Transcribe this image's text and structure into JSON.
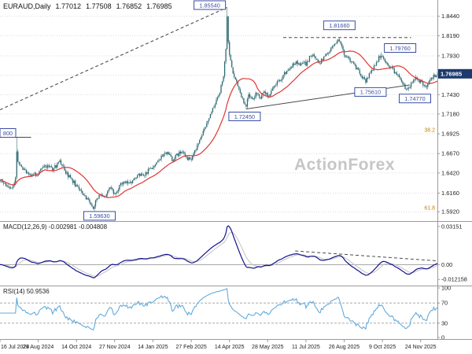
{
  "watermark": "ActionForex",
  "header": {
    "symbol": "EURAUD,Daily",
    "open": "1.77012",
    "high": "1.77508",
    "low": "1.76852",
    "close": "1.76985"
  },
  "panels": {
    "macd": {
      "title": "MACD(12,26,9) -0.002981 -0.004808"
    },
    "rsi": {
      "title": "RSI(14) 50.9536"
    }
  },
  "colors": {
    "candle": "#2f6a72",
    "ma": "#e23434",
    "macd": "#12128e",
    "macd_signal": "#c2c2c2",
    "rsi": "#64aadb",
    "trendline": "#4a4a4a",
    "grid": "#dcdcdc",
    "axis_text": "#1c1c1c",
    "label_border": "#3b4ea5",
    "label_text": "#3b4ea5",
    "current_bg": "#1d3a6d",
    "current_text": "#ffffff",
    "fib": "#b8860b",
    "separator": "#9a9a9a",
    "watermark": "#c6c6c6"
  },
  "chart_data": [
    {
      "type": "candlestick",
      "name": "EURAUD Daily price",
      "days_total": 367,
      "ylim": [
        1.58,
        1.865
      ],
      "y_ticks": [
        {
          "v": 1.844,
          "t": "1.8440"
        },
        {
          "v": 1.819,
          "t": "1.8190"
        },
        {
          "v": 1.793,
          "t": "1.7930"
        },
        {
          "v": 1.768,
          "t": "1.7680"
        },
        {
          "v": 1.743,
          "t": "1.7430"
        },
        {
          "v": 1.718,
          "t": "1.7180"
        },
        {
          "v": 1.6925,
          "t": "1.6925"
        },
        {
          "v": 1.667,
          "t": "1.6670"
        },
        {
          "v": 1.642,
          "t": "1.6420"
        },
        {
          "v": 1.616,
          "t": "1.6160"
        },
        {
          "v": 1.592,
          "t": "1.5920"
        }
      ],
      "fib_levels": [
        {
          "v": 1.6925,
          "t": "38.2"
        },
        {
          "v": 1.592,
          "t": "61.8"
        }
      ],
      "current_price": {
        "v": 1.76985,
        "t": "1.76985"
      },
      "ma_period": 25,
      "close_waypoints": [
        [
          0,
          1.633
        ],
        [
          6,
          1.626
        ],
        [
          10,
          1.621
        ],
        [
          13,
          1.634
        ],
        [
          14,
          1.671
        ],
        [
          15,
          1.654
        ],
        [
          18,
          1.648
        ],
        [
          22,
          1.642
        ],
        [
          26,
          1.639
        ],
        [
          32,
          1.641
        ],
        [
          38,
          1.652
        ],
        [
          44,
          1.646
        ],
        [
          50,
          1.656
        ],
        [
          56,
          1.64
        ],
        [
          60,
          1.6335
        ],
        [
          64,
          1.625
        ],
        [
          68,
          1.618
        ],
        [
          72,
          1.61
        ],
        [
          75,
          1.603
        ],
        [
          78,
          1.5975
        ],
        [
          81,
          1.608
        ],
        [
          84,
          1.617
        ],
        [
          88,
          1.612
        ],
        [
          92,
          1.622
        ],
        [
          96,
          1.6155
        ],
        [
          100,
          1.625
        ],
        [
          104,
          1.631
        ],
        [
          108,
          1.6265
        ],
        [
          112,
          1.6335
        ],
        [
          116,
          1.6415
        ],
        [
          120,
          1.637
        ],
        [
          124,
          1.6445
        ],
        [
          128,
          1.6495
        ],
        [
          132,
          1.658
        ],
        [
          136,
          1.6635
        ],
        [
          140,
          1.668
        ],
        [
          144,
          1.659
        ],
        [
          148,
          1.6655
        ],
        [
          152,
          1.669
        ],
        [
          156,
          1.6615
        ],
        [
          160,
          1.66
        ],
        [
          164,
          1.673
        ],
        [
          168,
          1.686
        ],
        [
          172,
          1.703
        ],
        [
          176,
          1.718
        ],
        [
          180,
          1.731
        ],
        [
          184,
          1.7445
        ],
        [
          187,
          1.768
        ],
        [
          189,
          1.801
        ],
        [
          190,
          1.843
        ],
        [
          191,
          1.808
        ],
        [
          193,
          1.786
        ],
        [
          196,
          1.766
        ],
        [
          200,
          1.749
        ],
        [
          203,
          1.737
        ],
        [
          206,
          1.729
        ],
        [
          208,
          1.7445
        ],
        [
          211,
          1.7375
        ],
        [
          214,
          1.7435
        ],
        [
          218,
          1.7375
        ],
        [
          221,
          1.7455
        ],
        [
          224,
          1.741
        ],
        [
          228,
          1.7495
        ],
        [
          232,
          1.7575
        ],
        [
          236,
          1.7655
        ],
        [
          240,
          1.7735
        ],
        [
          244,
          1.7795
        ],
        [
          248,
          1.7855
        ],
        [
          251,
          1.779
        ],
        [
          254,
          1.7845
        ],
        [
          256,
          1.782
        ],
        [
          259,
          1.7905
        ],
        [
          262,
          1.7935
        ],
        [
          265,
          1.7875
        ],
        [
          268,
          1.7845
        ],
        [
          271,
          1.791
        ],
        [
          274,
          1.7965
        ],
        [
          277,
          1.8025
        ],
        [
          280,
          1.8065
        ],
        [
          283,
          1.8115
        ],
        [
          285,
          1.8075
        ],
        [
          288,
          1.7965
        ],
        [
          291,
          1.7895
        ],
        [
          294,
          1.7865
        ],
        [
          297,
          1.7805
        ],
        [
          300,
          1.773
        ],
        [
          303,
          1.7655
        ],
        [
          306,
          1.7595
        ],
        [
          309,
          1.7685
        ],
        [
          312,
          1.7755
        ],
        [
          315,
          1.7855
        ],
        [
          318,
          1.7925
        ],
        [
          319,
          1.7935
        ],
        [
          321,
          1.789
        ],
        [
          324,
          1.7835
        ],
        [
          327,
          1.7795
        ],
        [
          330,
          1.7725
        ],
        [
          333,
          1.7675
        ],
        [
          336,
          1.7595
        ],
        [
          339,
          1.7525
        ],
        [
          342,
          1.7505
        ],
        [
          345,
          1.7585
        ],
        [
          348,
          1.7665
        ],
        [
          352,
          1.759
        ],
        [
          355,
          1.7525
        ],
        [
          358,
          1.7565
        ],
        [
          361,
          1.7635
        ],
        [
          364,
          1.768
        ],
        [
          366,
          1.76985
        ]
      ],
      "swing_highs": [
        [
          14,
          1.688
        ],
        [
          190,
          1.8554
        ],
        [
          284,
          1.8166
        ],
        [
          319,
          1.7976
        ]
      ],
      "swing_lows": [
        [
          78,
          1.5963
        ],
        [
          206,
          1.7245
        ],
        [
          306,
          1.7561
        ],
        [
          342,
          1.7477
        ]
      ],
      "price_labels": [
        {
          "t": "1.85540",
          "day": 190,
          "v": 1.8554,
          "dx": -22,
          "off": -15
        },
        {
          "t": "1.81660",
          "day": 284,
          "v": 1.8166,
          "dx": 0,
          "off": -15
        },
        {
          "t": "1.79760",
          "day": 319,
          "v": 1.7976,
          "dx": 24,
          "off": -5
        },
        {
          "t": "1.75610",
          "day": 306,
          "v": 1.7561,
          "dx": 6,
          "off": 4
        },
        {
          "t": "1.74770",
          "day": 342,
          "v": 1.7477,
          "dx": 8,
          "off": 4
        },
        {
          "t": "1.72450",
          "day": 206,
          "v": 1.7245,
          "dx": -2,
          "off": 4
        },
        {
          "t": "1.59630",
          "day": 78,
          "v": 1.5963,
          "dx": 8,
          "off": 4
        },
        {
          "t": "800",
          "day": 0,
          "v": 1.688,
          "dx": 0,
          "off": -5,
          "w": 20,
          "align": "left"
        }
      ],
      "trendlines": [
        {
          "from": [
            0,
            1.7235
          ],
          "to": [
            190,
            1.8554
          ],
          "style": "dashed"
        },
        {
          "from": [
            237,
            1.8166
          ],
          "to": [
            344,
            1.8166
          ],
          "style": "dashed"
        },
        {
          "from": [
            206,
            1.7245
          ],
          "to": [
            343,
            1.7555
          ],
          "style": "solid"
        },
        {
          "from": [
            0,
            1.688
          ],
          "to": [
            26,
            1.688
          ],
          "style": "solid"
        }
      ],
      "x_ticks": {
        "days": [
          0,
          32,
          64,
          96,
          128,
          160,
          192,
          224,
          256,
          288,
          320,
          352
        ],
        "labels": [
          "16 Jul 2024",
          "29 Aug 2024",
          "14 Oct 2024",
          "27 Nov 2024",
          "14 Jan 2025",
          "27 Feb 2025",
          "14 Apr 2025",
          "28 May 2025",
          "11 Jul 2025",
          "26 Aug 2025",
          "9 Oct 2025",
          "24 Nov 2025"
        ]
      }
    },
    {
      "type": "line",
      "name": "MACD(12,26,9)",
      "derived_from": "price_closes",
      "fast": 12,
      "slow": 26,
      "signal": 9,
      "current_macd": -0.002981,
      "current_signal": -0.004808,
      "ylim": [
        -0.014,
        0.034
      ],
      "y_labels": [
        {
          "v": 0.03151,
          "t": "0.03151"
        },
        {
          "v": 0,
          "t": "0.00"
        },
        {
          "v": -0.012158,
          "t": "-0.012158"
        }
      ],
      "zero_line": true,
      "trendlines": [
        {
          "from": [
            247,
            0.0113
          ],
          "to": [
            366,
            0.0031
          ],
          "style": "dashed"
        }
      ]
    },
    {
      "type": "line",
      "name": "RSI(14)",
      "derived_from": "price_closes",
      "period": 14,
      "current": 50.9536,
      "ylim": [
        0,
        100
      ],
      "y_labels": [
        {
          "v": 100,
          "t": "100"
        },
        {
          "v": 70,
          "t": "70"
        },
        {
          "v": 30,
          "t": "30"
        },
        {
          "v": 0,
          "t": "0"
        }
      ],
      "dashed_levels": [
        70,
        30
      ]
    }
  ]
}
